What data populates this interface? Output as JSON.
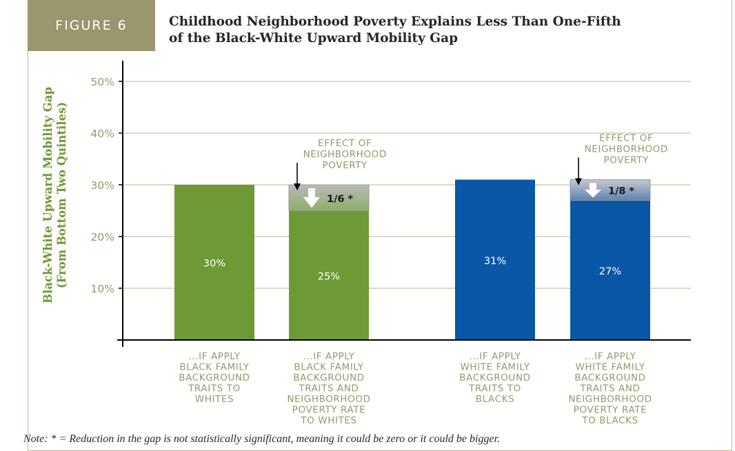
{
  "figure": {
    "label": "FIGURE 6",
    "title_line1": "Childhood Neighborhood Poverty Explains Less Than One-Fifth",
    "title_line2": "of the Black-White Upward Mobility Gap",
    "note": "Note: * = Reduction in the gap is not statistically significant, meaning it could be zero or it could be bigger."
  },
  "colors": {
    "green": "#6e9a35",
    "blue": "#0a57a7",
    "grid": "#b7b59a",
    "tick_text": "#9a966e",
    "reduction": "#a7b0b3"
  },
  "chart_data": {
    "type": "bar",
    "ylabel": [
      "Black-White Upward Mobility Gap",
      "(From Bottom Two Quintiles)"
    ],
    "ylim": [
      0,
      50
    ],
    "yticks": [
      10,
      20,
      30,
      40,
      50
    ],
    "ytick_labels": [
      "10%",
      "20%",
      "30%",
      "40%",
      "50%"
    ],
    "grid": true,
    "categories": [
      [
        "...IF APPLY",
        "BLACK FAMILY",
        "BACKGROUND",
        "TRAITS TO",
        "WHITES"
      ],
      [
        "...IF APPLY",
        "BLACK FAMILY",
        "BACKGROUND",
        "TRAITS AND",
        "NEIGHBORHOOD",
        "POVERTY RATE",
        "TO WHITES"
      ],
      [
        "...IF APPLY",
        "WHITE FAMILY",
        "BACKGROUND",
        "TRAITS TO",
        "BLACKS"
      ],
      [
        "...IF APPLY",
        "WHITE FAMILY",
        "BACKGROUND",
        "TRAITS AND",
        "NEIGHBORHOOD",
        "POVERTY RATE",
        "TO BLACKS"
      ]
    ],
    "values": [
      30,
      25,
      31,
      27
    ],
    "value_labels": [
      "30%",
      "25%",
      "31%",
      "27%"
    ],
    "bar_colors": [
      "green",
      "green",
      "blue",
      "blue"
    ],
    "reductions": [
      {
        "bar": 1,
        "from": 30,
        "to": 25,
        "label": "1/6 *",
        "annotation": [
          "EFFECT OF",
          "NEIGHBORHOOD",
          "POVERTY"
        ]
      },
      {
        "bar": 3,
        "from": 31,
        "to": 27,
        "label": "1/8 *",
        "annotation": [
          "EFFECT OF",
          "NEIGHBORHOOD",
          "POVERTY"
        ]
      }
    ]
  }
}
